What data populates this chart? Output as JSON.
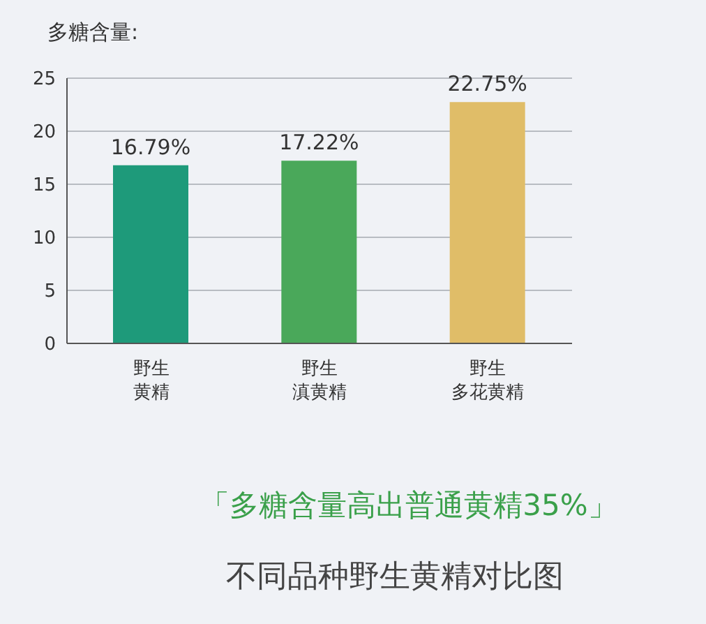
{
  "chart_data": {
    "type": "bar",
    "ylabel": "多糖含量:",
    "categories": [
      "野生黄精",
      "野生滇黄精",
      "野生多花黄精"
    ],
    "values": [
      16.79,
      17.22,
      22.75
    ],
    "colors": [
      "#1e9a7a",
      "#4aa85a",
      "#e0bd68"
    ],
    "value_labels": [
      "16.79%",
      "17.22%",
      "22.75%"
    ],
    "ylim": [
      0,
      25
    ],
    "yticks": [
      0,
      5,
      10,
      15,
      20,
      25
    ],
    "grid": "y",
    "annotations": [
      "「多糖含量高出普通黄精35%」",
      "不同品种野生黄精对比图"
    ]
  }
}
